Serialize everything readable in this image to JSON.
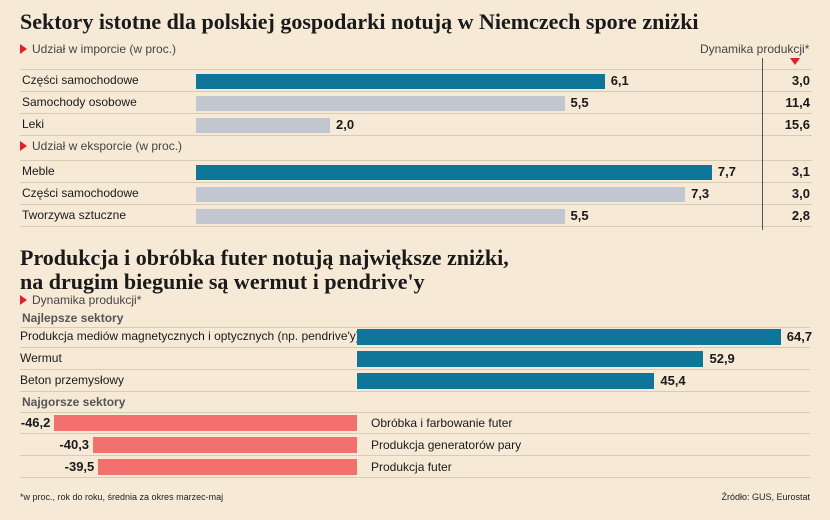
{
  "chart1": {
    "title": "Sektory istotne dla polskiej gospodarki notują w Niemczech spore zniżki",
    "import_label": "Udział w imporcie (w proc.)",
    "export_label": "Udział w eksporcie (w proc.)",
    "dyn_header": "Dynamika produkcji*"
  },
  "chart2": {
    "title_line1": "Produkcja i obróbka futer notują największe zniżki,",
    "title_line2": "na drugim biegunie są wermut i pendrive'y",
    "subtitle": "Dynamika produkcji*",
    "best_label": "Najlepsze sektory",
    "worst_label": "Najgorsze sektory"
  },
  "chart_data": [
    {
      "type": "bar",
      "orientation": "horizontal",
      "title": "Sektory istotne dla polskiej gospodarki notują w Niemczech spore zniżki",
      "series": [
        {
          "name": "Udział w imporcie (w proc.)",
          "categories": [
            "Części samochodowe",
            "Samochody osobowe",
            "Leki"
          ],
          "values": [
            6.1,
            5.5,
            2.0
          ],
          "labels": [
            "6,1",
            "5,5",
            "2,0"
          ],
          "colors": [
            "#0f7599",
            "#c2c6d1",
            "#c2c6d1"
          ],
          "dynamika": [
            "3,0",
            "11,4",
            "15,6"
          ]
        },
        {
          "name": "Udział w eksporcie (w proc.)",
          "categories": [
            "Meble",
            "Części samochodowe",
            "Tworzywa sztuczne"
          ],
          "values": [
            7.7,
            7.3,
            5.5
          ],
          "labels": [
            "7,7",
            "7,3",
            "5,5"
          ],
          "colors": [
            "#0f7599",
            "#c2c6d1",
            "#c2c6d1"
          ],
          "dynamika": [
            "3,1",
            "3,0",
            "2,8"
          ]
        }
      ],
      "value_range": [
        0,
        8
      ],
      "dynamika_label": "Dynamika produkcji*"
    },
    {
      "type": "bar",
      "orientation": "horizontal",
      "title": "Produkcja i obróbka futer notują największe zniżki, na drugim biegunie są wermut i pendrive'y",
      "series": [
        {
          "name": "Najlepsze sektory",
          "categories": [
            "Produkcja mediów magnetycznych i optycznych (np. pendrive'y)",
            "Wermut",
            "Beton przemysłowy"
          ],
          "values": [
            64.7,
            52.9,
            45.4
          ],
          "labels": [
            "64,7",
            "52,9",
            "45,4"
          ],
          "color": "#0f7599"
        },
        {
          "name": "Najgorsze sektory",
          "categories": [
            "Obróbka i farbowanie futer",
            "Produkcja generatorów pary",
            "Produkcja futer"
          ],
          "values": [
            -46.2,
            -40.3,
            -39.5
          ],
          "labels": [
            "-46,2",
            "-40,3",
            "-39,5"
          ],
          "color": "#f2706e"
        }
      ],
      "value_range": [
        -60,
        70
      ]
    }
  ],
  "footer": {
    "note": "*w proc., rok do roku, średnia za okres marzec-maj",
    "source": "Źródło: GUS, Eurostat"
  }
}
